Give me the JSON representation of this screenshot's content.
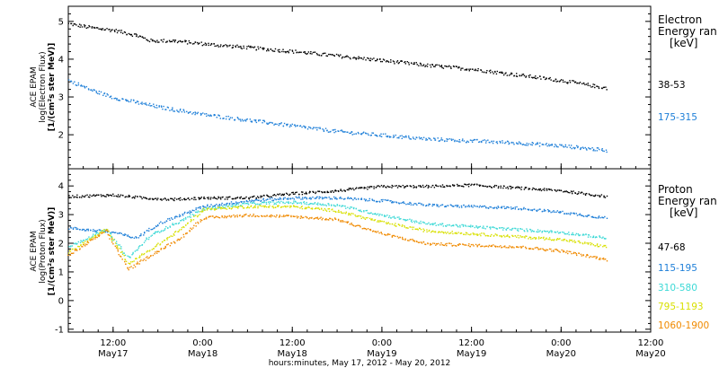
{
  "chart_data": [
    {
      "type": "scatter",
      "panel": "electron",
      "ylabel": [
        "ACE EPAM",
        "log(Electron Flux)",
        "[1/(cm²s ster MeV)]"
      ],
      "ylim": [
        1.1,
        5.4
      ],
      "yticks": [
        2,
        3,
        4,
        5
      ],
      "x_range": [
        "2012-05-17T06:00",
        "2012-05-20T12:00"
      ],
      "legend_title": [
        "Electron",
        "Energy ran",
        "[keV]"
      ],
      "series": [
        {
          "name": "38-53",
          "color": "#000000",
          "x": [
            "2012-05-17T06:00",
            "2012-05-17T09:00",
            "2012-05-17T12:00",
            "2012-05-17T15:00",
            "2012-05-17T17:00",
            "2012-05-17T20:00",
            "2012-05-18T00:00",
            "2012-05-18T06:00",
            "2012-05-18T12:00",
            "2012-05-18T18:00",
            "2012-05-19T00:00",
            "2012-05-19T06:00",
            "2012-05-19T12:00",
            "2012-05-19T18:00",
            "2012-05-20T00:00",
            "2012-05-20T06:00"
          ],
          "y": [
            4.95,
            4.85,
            4.78,
            4.65,
            4.5,
            4.5,
            4.42,
            4.32,
            4.22,
            4.1,
            3.98,
            3.85,
            3.75,
            3.6,
            3.45,
            3.25
          ]
        },
        {
          "name": "175-315",
          "color": "#1e7fd8",
          "x": [
            "2012-05-17T06:00",
            "2012-05-17T09:00",
            "2012-05-17T12:00",
            "2012-05-17T18:00",
            "2012-05-18T00:00",
            "2012-05-18T06:00",
            "2012-05-18T12:00",
            "2012-05-18T18:00",
            "2012-05-19T00:00",
            "2012-05-19T06:00",
            "2012-05-19T12:00",
            "2012-05-19T18:00",
            "2012-05-20T00:00",
            "2012-05-20T06:00"
          ],
          "y": [
            3.45,
            3.2,
            3.0,
            2.75,
            2.55,
            2.4,
            2.25,
            2.1,
            2.0,
            1.9,
            1.85,
            1.8,
            1.72,
            1.6
          ]
        }
      ]
    },
    {
      "type": "scatter",
      "panel": "proton",
      "ylabel": [
        "ACE EPAM",
        "log(Proton Flux)",
        "[1/(cm²s ster MeV)]"
      ],
      "ylim": [
        -1.1,
        4.6
      ],
      "yticks": [
        -1,
        0,
        1,
        2,
        3,
        4
      ],
      "x_range": [
        "2012-05-17T06:00",
        "2012-05-20T12:00"
      ],
      "xticks": [
        {
          "t": "2012-05-17T12:00",
          "time": "12:00",
          "date": "May17"
        },
        {
          "t": "2012-05-18T00:00",
          "time": "0:00",
          "date": "May18"
        },
        {
          "t": "2012-05-18T12:00",
          "time": "12:00",
          "date": "May18"
        },
        {
          "t": "2012-05-19T00:00",
          "time": "0:00",
          "date": "May19"
        },
        {
          "t": "2012-05-19T12:00",
          "time": "12:00",
          "date": "May19"
        },
        {
          "t": "2012-05-20T00:00",
          "time": "0:00",
          "date": "May20"
        },
        {
          "t": "2012-05-20T12:00",
          "time": "12:00",
          "date": "May20"
        }
      ],
      "xlabel": "hours:minutes, May 17, 2012 - May 20, 2012",
      "legend_title": [
        "Proton",
        "Energy ran",
        "[keV]"
      ],
      "series": [
        {
          "name": "47-68",
          "color": "#000000",
          "x": [
            "2012-05-17T06:00",
            "2012-05-17T12:00",
            "2012-05-17T16:00",
            "2012-05-17T20:00",
            "2012-05-18T00:00",
            "2012-05-18T06:00",
            "2012-05-18T12:00",
            "2012-05-18T18:00",
            "2012-05-19T00:00",
            "2012-05-19T06:00",
            "2012-05-19T12:00",
            "2012-05-19T18:00",
            "2012-05-20T00:00",
            "2012-05-20T06:00"
          ],
          "y": [
            3.65,
            3.7,
            3.6,
            3.55,
            3.6,
            3.6,
            3.75,
            3.85,
            4.0,
            4.0,
            4.05,
            3.95,
            3.85,
            3.65
          ]
        },
        {
          "name": "115-195",
          "color": "#1e7fd8",
          "x": [
            "2012-05-17T06:00",
            "2012-05-17T12:00",
            "2012-05-17T15:00",
            "2012-05-17T18:00",
            "2012-05-17T21:00",
            "2012-05-18T00:00",
            "2012-05-18T06:00",
            "2012-05-18T12:00",
            "2012-05-18T18:00",
            "2012-05-19T00:00",
            "2012-05-19T06:00",
            "2012-05-19T12:00",
            "2012-05-19T18:00",
            "2012-05-20T00:00",
            "2012-05-20T06:00"
          ],
          "y": [
            2.55,
            2.4,
            2.2,
            2.7,
            3.0,
            3.3,
            3.5,
            3.6,
            3.6,
            3.5,
            3.35,
            3.3,
            3.25,
            3.1,
            2.9
          ]
        },
        {
          "name": "310-580",
          "color": "#3dd9d6",
          "x": [
            "2012-05-17T06:00",
            "2012-05-17T11:00",
            "2012-05-17T14:00",
            "2012-05-17T17:00",
            "2012-05-17T21:00",
            "2012-05-18T00:00",
            "2012-05-18T06:00",
            "2012-05-18T12:00",
            "2012-05-18T18:00",
            "2012-05-19T00:00",
            "2012-05-19T06:00",
            "2012-05-19T12:00",
            "2012-05-19T18:00",
            "2012-05-20T00:00",
            "2012-05-20T06:00"
          ],
          "y": [
            1.9,
            2.5,
            1.5,
            2.3,
            2.8,
            3.2,
            3.4,
            3.45,
            3.35,
            3.0,
            2.7,
            2.6,
            2.5,
            2.4,
            2.2
          ]
        },
        {
          "name": "795-1193",
          "color": "#d8e000",
          "x": [
            "2012-05-17T06:00",
            "2012-05-17T11:00",
            "2012-05-17T14:00",
            "2012-05-17T17:00",
            "2012-05-17T21:00",
            "2012-05-18T00:00",
            "2012-05-18T06:00",
            "2012-05-18T12:00",
            "2012-05-18T18:00",
            "2012-05-19T00:00",
            "2012-05-19T06:00",
            "2012-05-19T12:00",
            "2012-05-19T18:00",
            "2012-05-20T00:00",
            "2012-05-20T06:00"
          ],
          "y": [
            1.7,
            2.5,
            1.3,
            1.8,
            2.5,
            3.2,
            3.3,
            3.3,
            3.15,
            2.75,
            2.45,
            2.35,
            2.25,
            2.15,
            1.9
          ]
        },
        {
          "name": "1060-1900",
          "color": "#f08a00",
          "x": [
            "2012-05-17T06:00",
            "2012-05-17T11:00",
            "2012-05-17T14:00",
            "2012-05-17T17:00",
            "2012-05-17T21:00",
            "2012-05-18T00:00",
            "2012-05-18T06:00",
            "2012-05-18T12:00",
            "2012-05-18T18:00",
            "2012-05-19T00:00",
            "2012-05-19T06:00",
            "2012-05-19T12:00",
            "2012-05-19T18:00",
            "2012-05-20T00:00",
            "2012-05-20T06:00"
          ],
          "y": [
            1.6,
            2.45,
            1.1,
            1.6,
            2.2,
            2.9,
            3.0,
            2.95,
            2.85,
            2.35,
            2.0,
            1.95,
            1.9,
            1.75,
            1.45
          ]
        }
      ]
    }
  ]
}
